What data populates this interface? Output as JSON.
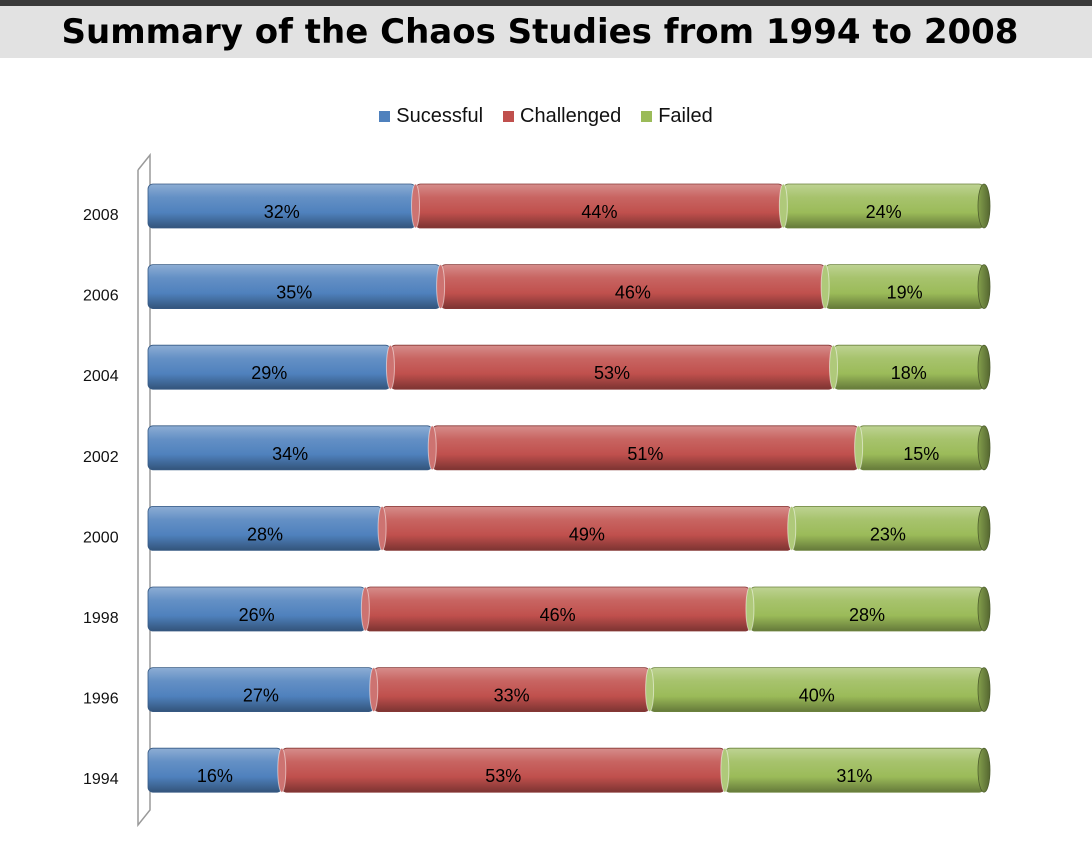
{
  "title": "Summary of the Chaos Studies from 1994 to 2008",
  "colors": {
    "successful": "#4f81bd",
    "challenged": "#c0504d",
    "failed": "#9bbb59"
  },
  "chart_data": {
    "type": "bar",
    "orientation": "horizontal",
    "stacked": true,
    "percent_stacked": true,
    "title": "Summary of the Chaos Studies from 1994 to 2008",
    "categories": [
      "2008",
      "2006",
      "2004",
      "2002",
      "2000",
      "1998",
      "1996",
      "1994"
    ],
    "series": [
      {
        "name": "Sucessful",
        "values": [
          32,
          35,
          29,
          34,
          28,
          26,
          27,
          16
        ],
        "labels": [
          "32%",
          "35%",
          "29%",
          "34%",
          "28%",
          "26%",
          "27%",
          "16%"
        ]
      },
      {
        "name": "Challenged",
        "values": [
          44,
          46,
          53,
          51,
          49,
          46,
          33,
          53
        ],
        "labels": [
          "44%",
          "46%",
          "53%",
          "51%",
          "49%",
          "46%",
          "33%",
          "53%"
        ]
      },
      {
        "name": "Failed",
        "values": [
          24,
          19,
          18,
          15,
          23,
          28,
          40,
          31
        ],
        "labels": [
          "24%",
          "19%",
          "18%",
          "15%",
          "23%",
          "28%",
          "40%",
          "31%"
        ]
      }
    ],
    "xlim": [
      0,
      100
    ],
    "legend": "top",
    "grid": false,
    "style": "3d-cylinder"
  }
}
